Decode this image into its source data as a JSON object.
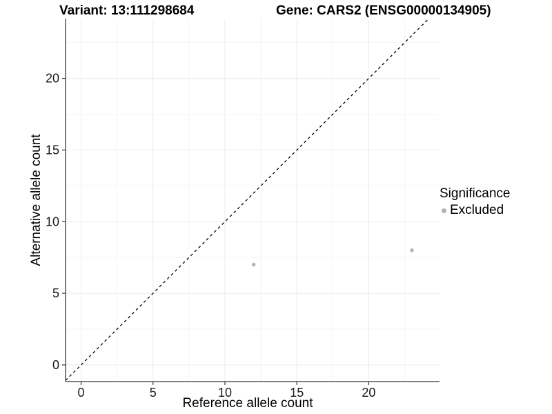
{
  "header": {
    "variant_title": "Variant: 13:111298684",
    "gene_title": "Gene: CARS2 (ENSG00000134905)"
  },
  "axes": {
    "x_label": "Reference allele count",
    "y_label": "Alternative allele count"
  },
  "legend": {
    "title": "Significance",
    "entries": [
      {
        "label": "Excluded",
        "color": "#b4b4b4"
      }
    ]
  },
  "chart_data": {
    "type": "scatter",
    "title": "Variant: 13:111298684 | Gene: CARS2 (ENSG00000134905)",
    "xlabel": "Reference allele count",
    "ylabel": "Alternative allele count",
    "series": [
      {
        "name": "Excluded",
        "color": "#b4b4b4",
        "points": [
          {
            "x": 12,
            "y": 7
          },
          {
            "x": 23,
            "y": 8
          }
        ]
      }
    ],
    "identity_line": {
      "style": "dashed",
      "equation": "y = x",
      "color": "#000000"
    },
    "xlim": [
      -1.08,
      24.92
    ],
    "ylim": [
      -1.16,
      24.17
    ],
    "x_ticks": [
      0,
      5,
      10,
      15,
      20
    ],
    "y_ticks": [
      0,
      5,
      10,
      15,
      20
    ],
    "x_minor_ticks": [
      2.5,
      7.5,
      12.5,
      17.5,
      22.5
    ],
    "y_minor_ticks": [
      2.5,
      7.5,
      12.5,
      17.5,
      22.5
    ],
    "grid": true,
    "legend_position": "right",
    "point_radius": 2.75,
    "colors": {
      "grid_major": "#ebebeb",
      "grid_minor": "#f4f4f4",
      "axis_line": "#555555",
      "tick_mark": "#333333",
      "tick_label": "#1a1a1a"
    }
  }
}
